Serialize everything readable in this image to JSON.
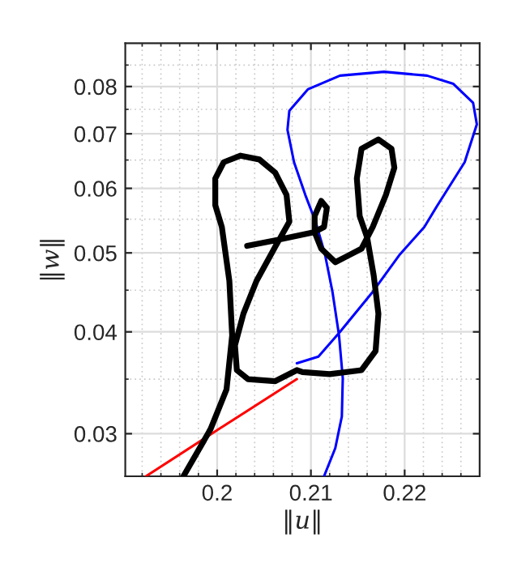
{
  "chart_data": {
    "type": "line",
    "xlabel": "‖u‖",
    "ylabel": "‖w‖",
    "log": "y",
    "grid": true,
    "line_style": "solid",
    "marker": "none",
    "xlim": [
      0.1902,
      0.228
    ],
    "ylim": [
      0.0266,
      0.0904
    ],
    "xticks": [
      {
        "value": 0.192,
        "label": null
      },
      {
        "value": 0.194,
        "label": null
      },
      {
        "value": 0.196,
        "label": null
      },
      {
        "value": 0.198,
        "label": null
      },
      0.2,
      {
        "value": 0.202,
        "label": null
      },
      {
        "value": 0.204,
        "label": null
      },
      {
        "value": 0.206,
        "label": null
      },
      {
        "value": 0.208,
        "label": null
      },
      0.21,
      {
        "value": 0.212,
        "label": null
      },
      {
        "value": 0.214,
        "label": null
      },
      {
        "value": 0.216,
        "label": null
      },
      {
        "value": 0.218,
        "label": null
      },
      0.22,
      {
        "value": 0.222,
        "label": null
      },
      {
        "value": 0.224,
        "label": null
      },
      {
        "value": 0.226,
        "label": null
      }
    ],
    "yticks": [
      0.03,
      {
        "value": 0.035,
        "label": null
      },
      0.04,
      {
        "value": 0.045,
        "label": null
      },
      0.05,
      {
        "value": 0.055,
        "label": null
      },
      0.06,
      {
        "value": 0.065,
        "label": null
      },
      0.07,
      {
        "value": 0.075,
        "label": null
      },
      0.08,
      {
        "value": 0.085,
        "label": null
      }
    ],
    "series": [
      {
        "color": "#ff0000",
        "x": [
          0.1924,
          0.2,
          0.2085
        ],
        "values": [
          0.0266,
          0.0303,
          0.035
        ]
      },
      {
        "color": "#0000ff",
        "x": [
          0.2085,
          0.2108,
          0.2131,
          0.2166,
          0.2195,
          0.2221,
          0.2235,
          0.2264,
          0.2277,
          0.2273,
          0.2252,
          0.2224,
          0.2178,
          0.2131,
          0.2097,
          0.2077,
          0.2075,
          0.2082,
          0.2094,
          0.2105,
          0.2115,
          0.2123,
          0.213,
          0.2134,
          0.2133,
          0.2126,
          0.2114
        ],
        "values": [
          0.0366,
          0.0373,
          0.04,
          0.0448,
          0.0498,
          0.0538,
          0.0572,
          0.0646,
          0.0719,
          0.0764,
          0.0806,
          0.0825,
          0.0834,
          0.0825,
          0.0794,
          0.0747,
          0.0708,
          0.0646,
          0.0589,
          0.0546,
          0.0498,
          0.0448,
          0.0396,
          0.0351,
          0.0315,
          0.0288,
          0.0266
        ]
      },
      {
        "color": "#000000",
        "x": [
          0.1964,
          0.1993,
          0.201,
          0.2016,
          0.2013,
          0.2005,
          0.1998,
          0.1998,
          0.2007,
          0.2025,
          0.2045,
          0.2062,
          0.2074,
          0.2077,
          0.2062,
          0.2042,
          0.2028,
          0.2019,
          0.2021,
          0.2033,
          0.2062,
          0.2085,
          0.2091,
          0.212,
          0.2154,
          0.2169,
          0.2172,
          0.2167,
          0.216,
          0.2152,
          0.2149,
          0.2154,
          0.2172,
          0.2186,
          0.2189,
          0.218,
          0.2166,
          0.2154,
          0.2138,
          0.2126,
          0.2111,
          0.2104,
          0.2104,
          0.2111,
          0.2117,
          0.2114,
          0.2103,
          0.2062,
          0.2032
        ],
        "values": [
          0.0266,
          0.0304,
          0.034,
          0.0396,
          0.0462,
          0.0538,
          0.0572,
          0.0617,
          0.0646,
          0.0658,
          0.0651,
          0.0627,
          0.0589,
          0.0546,
          0.0509,
          0.0462,
          0.0421,
          0.0385,
          0.0359,
          0.035,
          0.0348,
          0.0359,
          0.0357,
          0.0355,
          0.0359,
          0.0379,
          0.0421,
          0.0469,
          0.0522,
          0.0555,
          0.0617,
          0.0671,
          0.0689,
          0.0671,
          0.0636,
          0.0589,
          0.0538,
          0.0506,
          0.0495,
          0.0487,
          0.0506,
          0.053,
          0.0555,
          0.0579,
          0.0568,
          0.0538,
          0.053,
          0.0518,
          0.051
        ]
      }
    ]
  }
}
